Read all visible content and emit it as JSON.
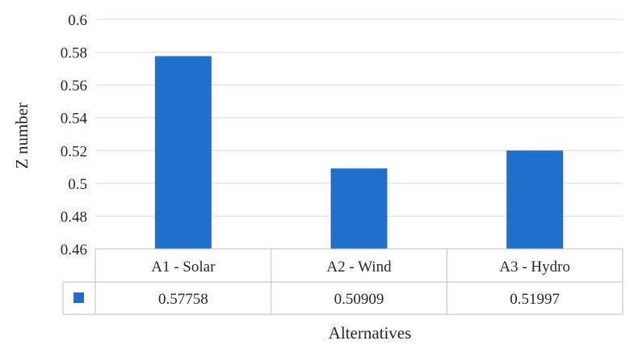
{
  "chart_data": {
    "type": "bar",
    "categories": [
      "A1 - Solar",
      "A2 - Wind",
      "A3 - Hydro"
    ],
    "values": [
      0.57758,
      0.50909,
      0.51997
    ],
    "value_labels": [
      "0.57758",
      "0.50909",
      "0.51997"
    ],
    "title": "",
    "xlabel": "Alternatives",
    "ylabel": "Z number",
    "ylim": [
      0.46,
      0.6
    ],
    "yticks": [
      "0.46",
      "0.48",
      "0.5",
      "0.52",
      "0.54",
      "0.56",
      "0.58",
      "0.6"
    ],
    "grid": true,
    "data_table": true,
    "colors": {
      "bar": "#1f6fcc",
      "grid": "#d9d9d9",
      "table_border": "#bfbfbf"
    }
  }
}
